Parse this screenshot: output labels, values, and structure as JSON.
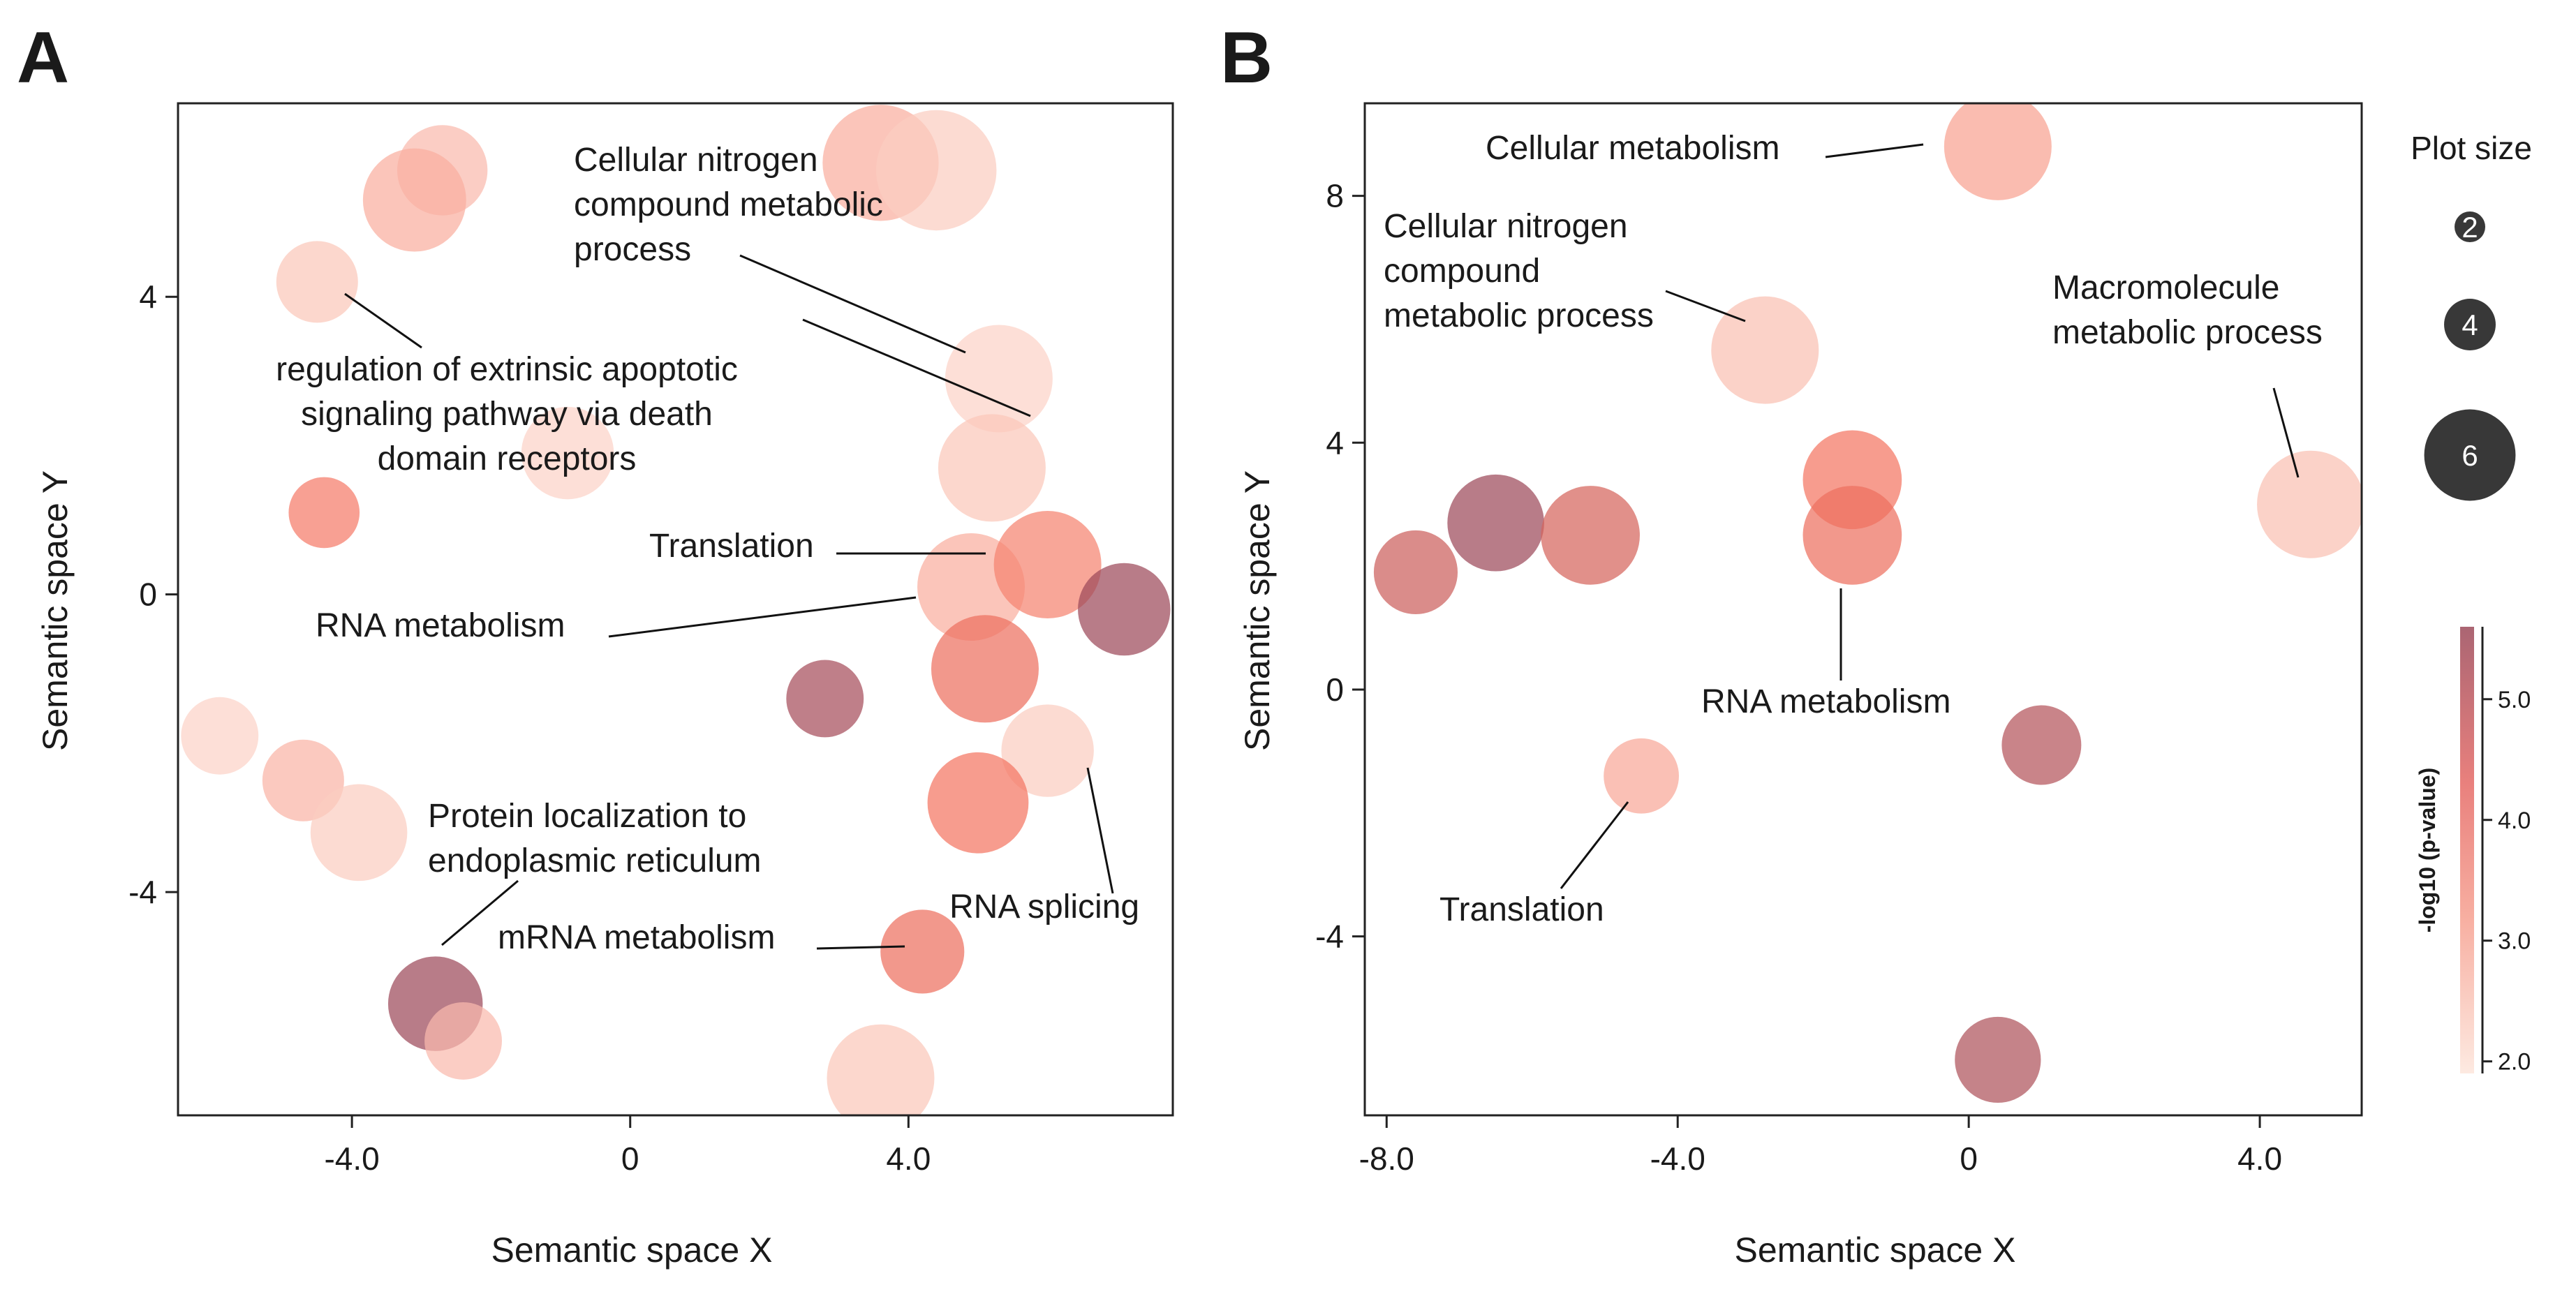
{
  "chart_data": [
    {
      "panel": "A",
      "type": "scatter",
      "xlabel": "Semantic space X",
      "ylabel": "Semantic space Y",
      "xlim": [
        -6.5,
        7.8
      ],
      "ylim": [
        -7.0,
        6.6
      ],
      "xticks": [
        {
          "v": -4,
          "t": "-4.0"
        },
        {
          "v": 0,
          "t": "0"
        },
        {
          "v": 4,
          "t": "4.0"
        }
      ],
      "yticks": [
        {
          "v": 4,
          "t": "4"
        },
        {
          "v": 0,
          "t": "0"
        },
        {
          "v": -4,
          "t": "-4"
        }
      ],
      "points": [
        {
          "x": -2.7,
          "y": 5.7,
          "size": 4.2,
          "logp": 2.6
        },
        {
          "x": -3.1,
          "y": 5.3,
          "size": 4.8,
          "logp": 2.8
        },
        {
          "x": -4.5,
          "y": 4.2,
          "size": 3.8,
          "logp": 2.4
        },
        {
          "x": 3.6,
          "y": 5.8,
          "size": 5.4,
          "logp": 2.8
        },
        {
          "x": 4.4,
          "y": 5.7,
          "size": 5.6,
          "logp": 2.3
        },
        {
          "x": 5.3,
          "y": 2.9,
          "size": 5.0,
          "logp": 2.2
        },
        {
          "x": 5.2,
          "y": 1.7,
          "size": 5.0,
          "logp": 2.4
        },
        {
          "x": -0.9,
          "y": 1.9,
          "size": 4.3,
          "logp": 2.2
        },
        {
          "x": -4.4,
          "y": 1.1,
          "size": 3.3,
          "logp": 3.6
        },
        {
          "x": 4.9,
          "y": 0.1,
          "size": 5.0,
          "logp": 2.8
        },
        {
          "x": 6.0,
          "y": 0.4,
          "size": 5.0,
          "logp": 3.5
        },
        {
          "x": 7.1,
          "y": -0.2,
          "size": 4.3,
          "logp": 5.6
        },
        {
          "x": 2.8,
          "y": -1.4,
          "size": 3.6,
          "logp": 5.4
        },
        {
          "x": 5.1,
          "y": -1.0,
          "size": 5.0,
          "logp": 3.9
        },
        {
          "x": 6.0,
          "y": -2.1,
          "size": 4.3,
          "logp": 2.3
        },
        {
          "x": 5.0,
          "y": -2.8,
          "size": 4.7,
          "logp": 3.7
        },
        {
          "x": -5.9,
          "y": -1.9,
          "size": 3.6,
          "logp": 2.2
        },
        {
          "x": -4.7,
          "y": -2.5,
          "size": 3.8,
          "logp": 2.7
        },
        {
          "x": -3.9,
          "y": -3.2,
          "size": 4.5,
          "logp": 2.3
        },
        {
          "x": 4.2,
          "y": -4.8,
          "size": 3.9,
          "logp": 3.9
        },
        {
          "x": -2.8,
          "y": -5.5,
          "size": 4.4,
          "logp": 5.9
        },
        {
          "x": -2.4,
          "y": -6.0,
          "size": 3.6,
          "logp": 2.6
        },
        {
          "x": 3.6,
          "y": -6.5,
          "size": 5.0,
          "logp": 2.4
        }
      ],
      "annotations": [
        {
          "lines": [
            "Cellular nitrogen",
            "compound metabolic",
            "process"
          ],
          "tx": 822,
          "ty": 245,
          "anchor": "start",
          "leaders": [
            [
              [
                1060,
                366
              ],
              [
                1383,
                505
              ]
            ],
            [
              [
                1150,
                458
              ],
              [
                1476,
                596
              ]
            ]
          ]
        },
        {
          "lines": [
            "regulation of extrinsic apoptotic",
            "signaling pathway via death",
            "domain receptors"
          ],
          "tx": 726,
          "ty": 545,
          "anchor": "middle",
          "leaders": [
            [
              [
                494,
                421
              ],
              [
                604,
                498
              ]
            ]
          ]
        },
        {
          "lines": [
            "Translation"
          ],
          "tx": 930,
          "ty": 798,
          "anchor": "start",
          "leaders": [
            [
              [
                1198,
                793
              ],
              [
                1412,
                793
              ]
            ]
          ]
        },
        {
          "lines": [
            "RNA metabolism"
          ],
          "tx": 452,
          "ty": 912,
          "anchor": "start",
          "leaders": [
            [
              [
                872,
                912
              ],
              [
                1312,
                856
              ]
            ]
          ]
        },
        {
          "lines": [
            "Protein localization to",
            "endoplasmic reticulum"
          ],
          "tx": 613,
          "ty": 1185,
          "anchor": "start",
          "leaders": [
            [
              [
                742,
                1262
              ],
              [
                633,
                1354
              ]
            ]
          ]
        },
        {
          "lines": [
            "mRNA metabolism"
          ],
          "tx": 713,
          "ty": 1359,
          "anchor": "start",
          "leaders": [
            [
              [
                1170,
                1359
              ],
              [
                1296,
                1356
              ]
            ]
          ]
        },
        {
          "lines": [
            "RNA splicing"
          ],
          "tx": 1360,
          "ty": 1315,
          "anchor": "start",
          "leaders": [
            [
              [
                1594,
                1280
              ],
              [
                1558,
                1100
              ]
            ]
          ]
        }
      ]
    },
    {
      "panel": "B",
      "type": "scatter",
      "xlabel": "Semantic space X",
      "ylabel": "Semantic space Y",
      "xlim": [
        -8.3,
        5.4
      ],
      "ylim": [
        -6.9,
        9.5
      ],
      "xticks": [
        {
          "v": -8,
          "t": "-8.0"
        },
        {
          "v": -4,
          "t": "-4.0"
        },
        {
          "v": 0,
          "t": "0"
        },
        {
          "v": 4,
          "t": "4.0"
        }
      ],
      "yticks": [
        {
          "v": 8,
          "t": "8"
        },
        {
          "v": 4,
          "t": "4"
        },
        {
          "v": 0,
          "t": "0"
        },
        {
          "v": -4,
          "t": "-4"
        }
      ],
      "points": [
        {
          "x": 0.4,
          "y": 8.8,
          "size": 5.0,
          "logp": 3.0
        },
        {
          "x": -2.8,
          "y": 5.5,
          "size": 5.0,
          "logp": 2.5
        },
        {
          "x": 4.7,
          "y": 3.0,
          "size": 5.0,
          "logp": 2.5
        },
        {
          "x": -1.6,
          "y": 3.4,
          "size": 4.6,
          "logp": 3.7
        },
        {
          "x": -1.6,
          "y": 2.5,
          "size": 4.6,
          "logp": 3.9
        },
        {
          "x": -7.6,
          "y": 1.9,
          "size": 3.9,
          "logp": 4.6
        },
        {
          "x": -6.5,
          "y": 2.7,
          "size": 4.5,
          "logp": 5.8
        },
        {
          "x": -5.2,
          "y": 2.5,
          "size": 4.6,
          "logp": 4.4
        },
        {
          "x": 1.0,
          "y": -0.9,
          "size": 3.7,
          "logp": 5.1
        },
        {
          "x": -4.5,
          "y": -1.4,
          "size": 3.5,
          "logp": 2.9
        },
        {
          "x": 0.4,
          "y": -6.0,
          "size": 4.0,
          "logp": 5.2
        }
      ],
      "annotations": [
        {
          "lines": [
            "Cellular metabolism"
          ],
          "tx": 2128,
          "ty": 228,
          "anchor": "start",
          "leaders": [
            [
              [
                2615,
                225
              ],
              [
                2755,
                207
              ]
            ]
          ]
        },
        {
          "lines": [
            "Cellular nitrogen",
            "compound",
            "metabolic process"
          ],
          "tx": 1982,
          "ty": 340,
          "anchor": "start",
          "leaders": [
            [
              [
                2386,
                417
              ],
              [
                2500,
                460
              ]
            ]
          ]
        },
        {
          "lines": [
            "Macromolecule",
            "metabolic process"
          ],
          "tx": 2940,
          "ty": 428,
          "anchor": "start",
          "leaders": [
            [
              [
                3257,
                556
              ],
              [
                3292,
                684
              ]
            ]
          ]
        },
        {
          "lines": [
            "RNA metabolism"
          ],
          "tx": 2437,
          "ty": 1021,
          "anchor": "start",
          "leaders": [
            [
              [
                2637,
                975
              ],
              [
                2637,
                843
              ]
            ]
          ]
        },
        {
          "lines": [
            "Translation"
          ],
          "tx": 2062,
          "ty": 1319,
          "anchor": "start",
          "leaders": [
            [
              [
                2236,
                1273
              ],
              [
                2332,
                1149
              ]
            ]
          ]
        }
      ]
    }
  ],
  "panel_letters": [
    "A",
    "B"
  ],
  "size_legend": {
    "title": "Plot size",
    "entries": [
      {
        "value": 2,
        "label": "2"
      },
      {
        "value": 4,
        "label": "4"
      },
      {
        "value": 6,
        "label": "6"
      }
    ]
  },
  "colorbar": {
    "title": "-log10 (p-value)",
    "min": 1.9,
    "max": 5.6,
    "ticks": [
      {
        "v": 5.0,
        "t": "5.0"
      },
      {
        "v": 4.0,
        "t": "4.0"
      },
      {
        "v": 3.0,
        "t": "3.0"
      },
      {
        "v": 2.0,
        "t": "2.0"
      }
    ],
    "colors": [
      "#fde6dc",
      "#f4735f",
      "#9c4a5a"
    ]
  }
}
